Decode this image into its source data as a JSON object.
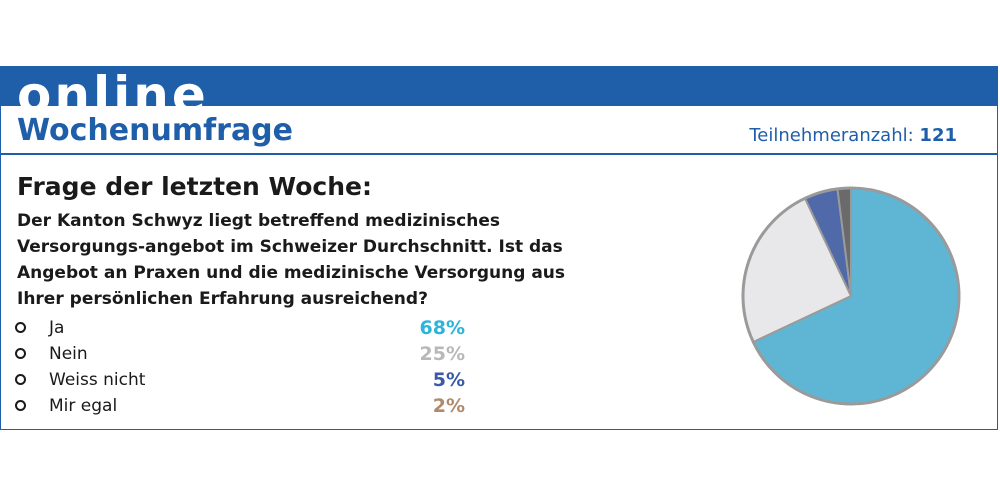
{
  "banner": {
    "word": "online"
  },
  "heading": {
    "title": "Wochenumfrage"
  },
  "participants": {
    "label": "Teilnehmeranzahl:",
    "count": "121"
  },
  "question": {
    "title": "Frage der letzten Woche:",
    "text": "Der Kanton Schwyz liegt betreffend medizinisches Versorgungs-angebot im Schweizer Durchschnitt. Ist das Angebot an Praxen und die medizinische Versorgung aus Ihrer persönlichen Erfahrung ausreichend?"
  },
  "answers": [
    {
      "label": "Ja",
      "value_text": "68%",
      "color": "#2bb4dc"
    },
    {
      "label": "Nein",
      "value_text": "25%",
      "color": "#b8b8b8"
    },
    {
      "label": "Weiss nicht",
      "value_text": "5%",
      "color": "#3a5aa8"
    },
    {
      "label": "Mir egal",
      "value_text": "2%",
      "color": "#b08a6c"
    }
  ],
  "chart_data": {
    "type": "pie",
    "categories": [
      "Ja",
      "Nein",
      "Weiss nicht",
      "Mir egal"
    ],
    "values": [
      68,
      25,
      5,
      2
    ],
    "colors": [
      "#5fb6d4",
      "#e8e8ea",
      "#5069a8",
      "#6a6a6a"
    ],
    "edge_color": "#9a9a9a"
  }
}
